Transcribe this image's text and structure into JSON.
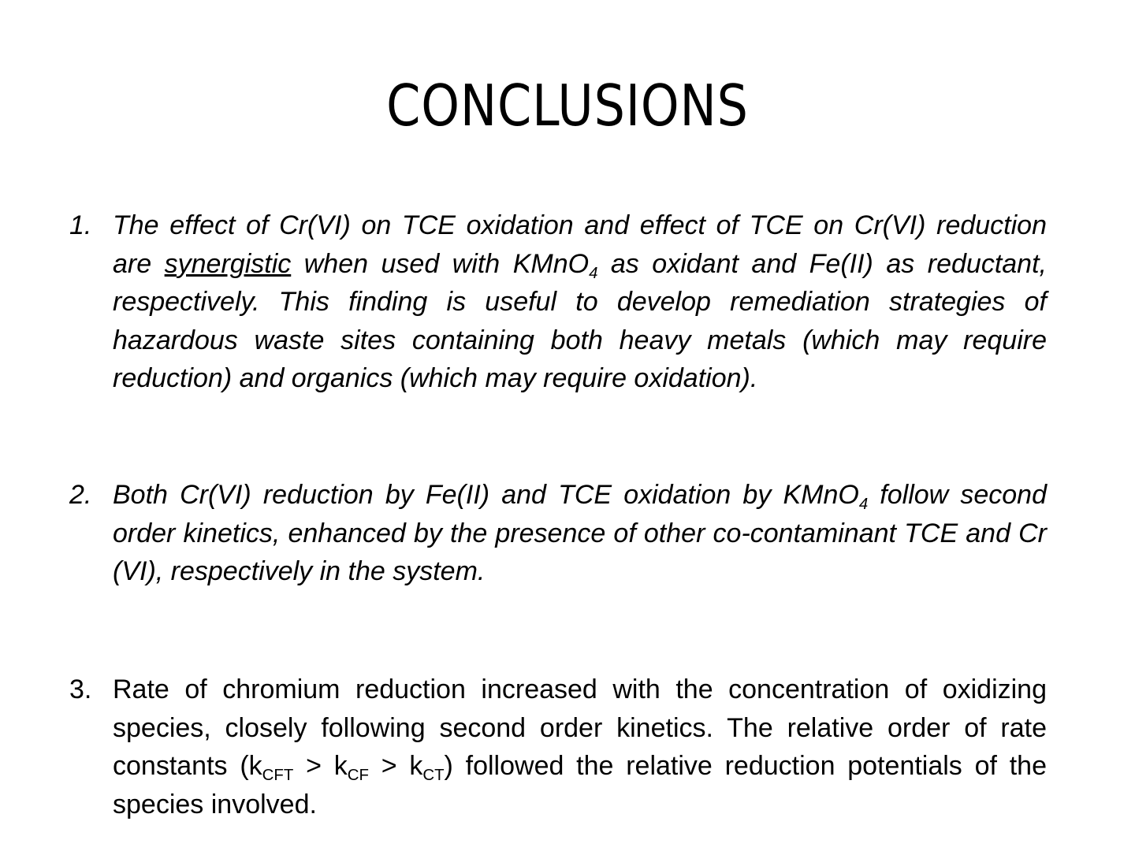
{
  "title": "CONCLUSIONS",
  "items": [
    {
      "number": "1.",
      "runs": [
        "The effect of Cr(VI) on TCE oxidation and effect of TCE on Cr(VI) reduction are ",
        "synergistic",
        " when used with KMnO",
        "4",
        " as oxidant and Fe(II) as reductant, respectively. This finding is useful to develop remediation strategies of hazardous waste sites containing both heavy metals (which may require reduction) and organics (which may require oxidation)."
      ]
    },
    {
      "number": "2.",
      "runs": [
        "Both Cr(VI) reduction by Fe(II) and TCE oxidation by KMnO",
        "4",
        " follow second order kinetics, enhanced by the presence of other co-contaminant TCE and Cr (VI), respectively in the system."
      ]
    },
    {
      "number": "3.",
      "runs": [
        "Rate of chromium reduction increased with the concentration of oxidizing species, closely following second order kinetics. The relative order of rate constants (k",
        "CFT",
        " > k",
        "CF",
        " > k",
        "CT",
        ") followed the relative reduction potentials of the species involved."
      ]
    }
  ]
}
